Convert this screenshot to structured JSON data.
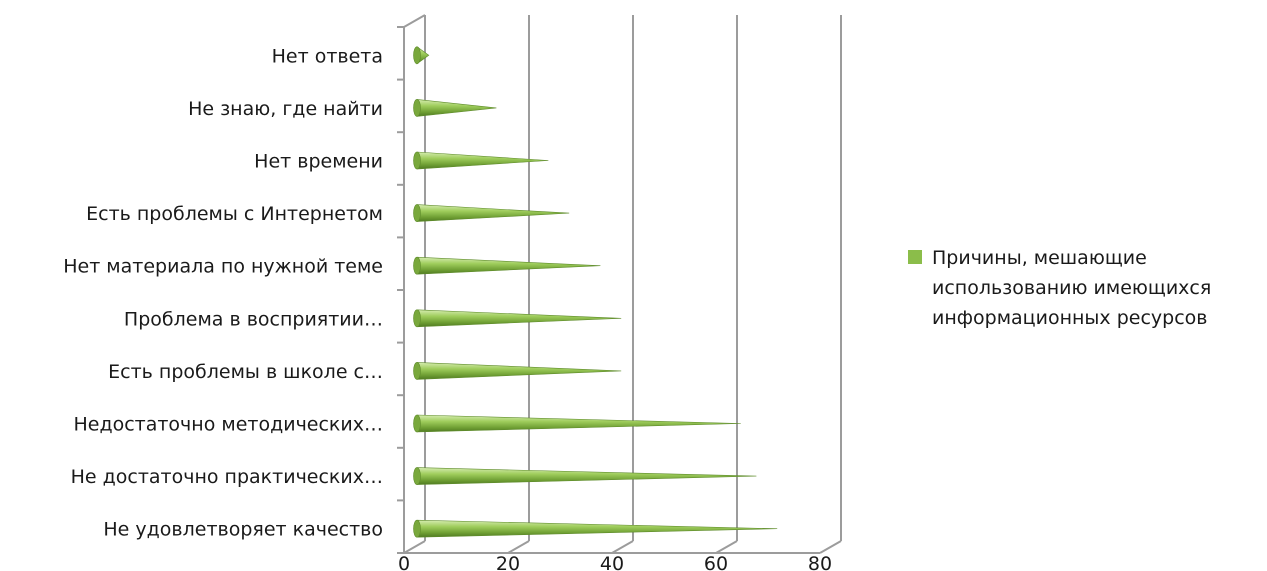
{
  "chart_data": {
    "type": "bar",
    "orientation": "horizontal",
    "style": "3d-cone",
    "categories": [
      "Не удовлетворяет качество",
      "Не достаточно практических…",
      "Недостаточно методических…",
      "Есть проблемы в школе с…",
      "Проблема в восприятии…",
      "Нет материала по нужной теме",
      "Есть проблемы с Интернетом",
      "Нет времени",
      "Не знаю, где найти",
      "Нет ответа"
    ],
    "series": [
      {
        "name": "Причины, мешающие использованию имеющихся информационных ресурсов",
        "color": "#8bbd4a",
        "values": [
          71,
          67,
          64,
          41,
          41,
          37,
          31,
          27,
          17,
          4
        ]
      }
    ],
    "xlim": [
      0,
      80
    ],
    "xticks": [
      0,
      20,
      40,
      60,
      80
    ],
    "gridlines": true,
    "legend_position": "right",
    "legend_lines": [
      "Причины, мешающие",
      "использованию имеющихся",
      "информационных ресурсов"
    ]
  }
}
